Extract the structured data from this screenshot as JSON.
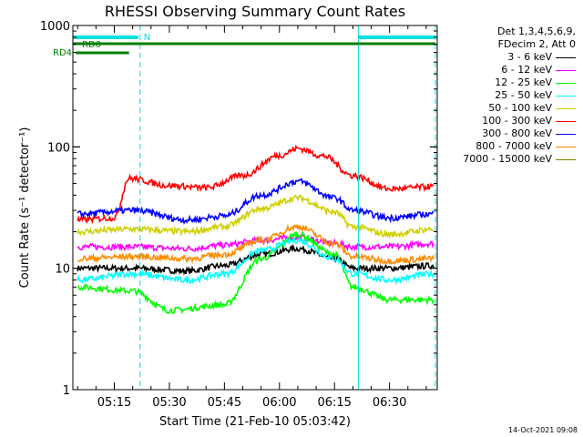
{
  "chart_data": {
    "type": "line",
    "title": "RHESSI Observing Summary Count Rates",
    "xlabel": "Start Time (21-Feb-10 05:03:42)",
    "ylabel": "Count Rate (s⁻¹ detector⁻¹)",
    "yscale": "log",
    "xlim": [
      "05:03:42",
      "06:43:00"
    ],
    "ylim": [
      1,
      1000
    ],
    "x_ticks": [
      "05:15",
      "05:30",
      "05:45",
      "06:00",
      "06:15",
      "06:30"
    ],
    "y_ticks": [
      "1",
      "10",
      "100",
      "1000"
    ],
    "legend_header": [
      "Det 1,3,4,5,6,9,",
      "FDecim 2, Att 0"
    ],
    "markers": {
      "n_label": "N",
      "rd0_label": "RD0",
      "rd4_label": "RD4",
      "cyan_bar_segments": [
        [
          "05:03:42",
          "05:21:30"
        ],
        [
          "06:21:30",
          "06:42:30"
        ]
      ],
      "rd0_segment": [
        "05:03:42",
        "06:42:30"
      ],
      "rd4_segment": [
        "05:04:30",
        "05:19:00"
      ],
      "cyan_vlines": [
        "05:22:00",
        "06:21:30"
      ],
      "cyan_dashed_vlines": [
        "05:22:00",
        "06:42:30"
      ],
      "cyan_solid_vlines": [
        "05:03:42",
        "06:21:30"
      ],
      "colors": {
        "cyan": "#00e0e0",
        "green": "#007f00"
      }
    },
    "series": [
      {
        "name": "3 - 6 keV",
        "color": "#000000",
        "points": [
          [
            "05:05",
            10
          ],
          [
            "05:20",
            10
          ],
          [
            "05:35",
            9.5
          ],
          [
            "05:45",
            10.5
          ],
          [
            "05:55",
            13
          ],
          [
            "06:05",
            14.5
          ],
          [
            "06:15",
            12
          ],
          [
            "06:20",
            10
          ],
          [
            "06:30",
            10
          ],
          [
            "06:42",
            10.5
          ]
        ]
      },
      {
        "name": "6 - 12 keV",
        "color": "#ff00ff",
        "points": [
          [
            "05:05",
            15
          ],
          [
            "05:20",
            15
          ],
          [
            "05:35",
            14.5
          ],
          [
            "05:45",
            15.5
          ],
          [
            "05:55",
            17
          ],
          [
            "06:05",
            18
          ],
          [
            "06:15",
            16
          ],
          [
            "06:20",
            15
          ],
          [
            "06:30",
            15
          ],
          [
            "06:42",
            16
          ]
        ]
      },
      {
        "name": "12 - 25 keV",
        "color": "#00ff00",
        "points": [
          [
            "05:05",
            7
          ],
          [
            "05:20",
            6.5
          ],
          [
            "05:30",
            4.5
          ],
          [
            "05:45",
            5
          ],
          [
            "05:55",
            12
          ],
          [
            "06:05",
            19
          ],
          [
            "06:15",
            13
          ],
          [
            "06:20",
            7
          ],
          [
            "06:30",
            5.5
          ],
          [
            "06:42",
            5.5
          ]
        ]
      },
      {
        "name": "25 - 50 keV",
        "color": "#00ffff",
        "points": [
          [
            "05:05",
            8
          ],
          [
            "05:20",
            9
          ],
          [
            "05:35",
            8
          ],
          [
            "05:45",
            9
          ],
          [
            "05:55",
            14
          ],
          [
            "06:05",
            17
          ],
          [
            "06:15",
            12
          ],
          [
            "06:20",
            9
          ],
          [
            "06:30",
            8
          ],
          [
            "06:42",
            9
          ]
        ]
      },
      {
        "name": "50 - 100 keV",
        "color": "#d0d000",
        "points": [
          [
            "05:05",
            20
          ],
          [
            "05:20",
            21
          ],
          [
            "05:35",
            20
          ],
          [
            "05:45",
            22
          ],
          [
            "05:55",
            31
          ],
          [
            "06:05",
            38
          ],
          [
            "06:15",
            29
          ],
          [
            "06:20",
            22
          ],
          [
            "06:30",
            19
          ],
          [
            "06:42",
            21
          ]
        ]
      },
      {
        "name": "100 - 300 keV",
        "color": "#ff0000",
        "points": [
          [
            "05:05",
            25
          ],
          [
            "05:15",
            26
          ],
          [
            "05:19",
            55
          ],
          [
            "05:30",
            48
          ],
          [
            "05:40",
            46
          ],
          [
            "05:50",
            58
          ],
          [
            "06:00",
            85
          ],
          [
            "06:05",
            97
          ],
          [
            "06:12",
            84
          ],
          [
            "06:20",
            58
          ],
          [
            "06:30",
            45
          ],
          [
            "06:42",
            47
          ]
        ]
      },
      {
        "name": "300 - 800 keV",
        "color": "#0000ff",
        "points": [
          [
            "05:05",
            28
          ],
          [
            "05:20",
            30
          ],
          [
            "05:35",
            25
          ],
          [
            "05:45",
            27
          ],
          [
            "05:55",
            40
          ],
          [
            "06:05",
            52
          ],
          [
            "06:15",
            38
          ],
          [
            "06:20",
            30
          ],
          [
            "06:30",
            26
          ],
          [
            "06:42",
            28
          ]
        ]
      },
      {
        "name": "800 - 7000 keV",
        "color": "#ff8c00",
        "points": [
          [
            "05:05",
            12
          ],
          [
            "05:20",
            12.5
          ],
          [
            "05:35",
            12
          ],
          [
            "05:45",
            13
          ],
          [
            "05:55",
            17
          ],
          [
            "06:05",
            22
          ],
          [
            "06:15",
            16
          ],
          [
            "06:20",
            12.5
          ],
          [
            "06:30",
            11.5
          ],
          [
            "06:42",
            12
          ]
        ]
      },
      {
        "name": "7000 - 15000 keV",
        "color": "#808000",
        "points": []
      }
    ]
  },
  "footer_text": "14-Oct-2021 09:08"
}
